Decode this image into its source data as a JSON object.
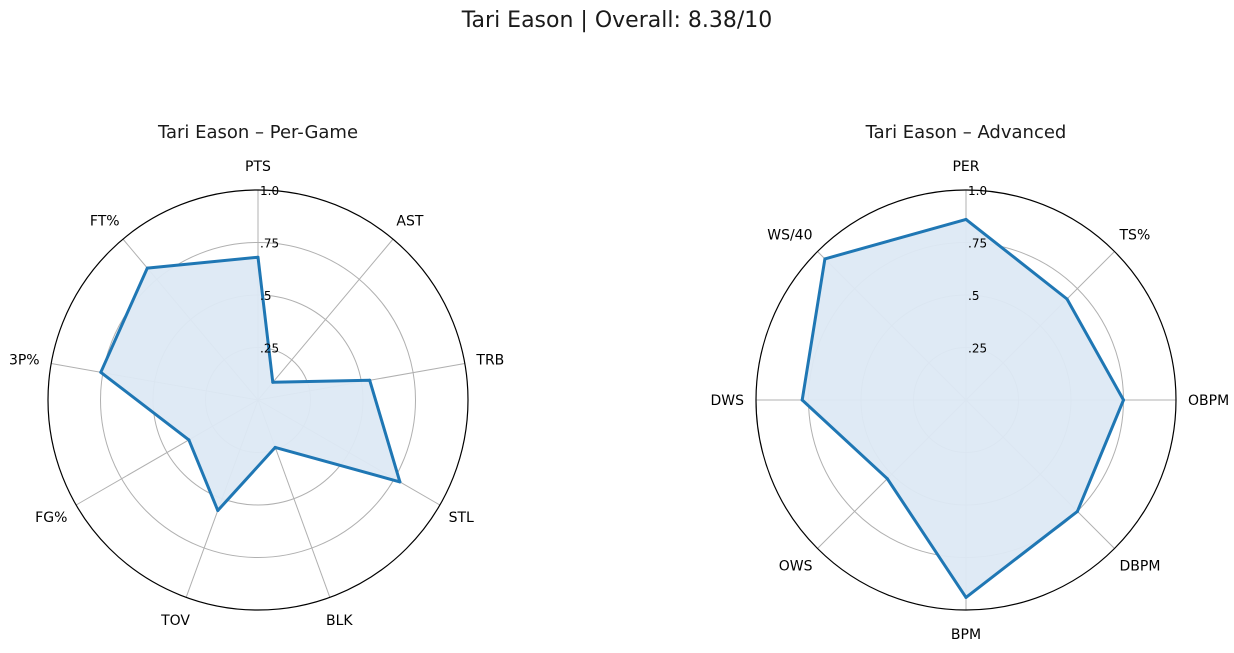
{
  "figure": {
    "title": "Tari Eason | Overall: 8.38/10"
  },
  "style": {
    "line_color": "#1f77b4",
    "fill_color": "#dde9f4",
    "grid_color": "#b0b0b0",
    "frame_color": "#000000"
  },
  "chart_data": [
    {
      "type": "radar",
      "title": "Tari Eason – Per-Game",
      "categories": [
        "PTS",
        "AST",
        "TRB",
        "STL",
        "BLK",
        "TOV",
        "FG%",
        "3P%",
        "FT%"
      ],
      "values": [
        0.68,
        0.11,
        0.54,
        0.78,
        0.24,
        0.56,
        0.38,
        0.76,
        0.82
      ],
      "rlim": [
        0,
        1
      ],
      "ring_ticks": [
        0.25,
        0.5,
        0.75,
        1.0
      ],
      "ring_tick_labels": [
        ".25",
        ".5",
        ".75",
        "1.0"
      ],
      "grid": true
    },
    {
      "type": "radar",
      "title": "Tari Eason – Advanced",
      "categories": [
        "PER",
        "TS%",
        "OBPM",
        "DBPM",
        "BPM",
        "OWS",
        "DWS",
        "WS/40"
      ],
      "values": [
        0.86,
        0.68,
        0.75,
        0.75,
        0.94,
        0.53,
        0.78,
        0.95
      ],
      "rlim": [
        0,
        1
      ],
      "ring_ticks": [
        0.25,
        0.5,
        0.75,
        1.0
      ],
      "ring_tick_labels": [
        ".25",
        ".5",
        ".75",
        "1.0"
      ],
      "grid": true
    }
  ]
}
